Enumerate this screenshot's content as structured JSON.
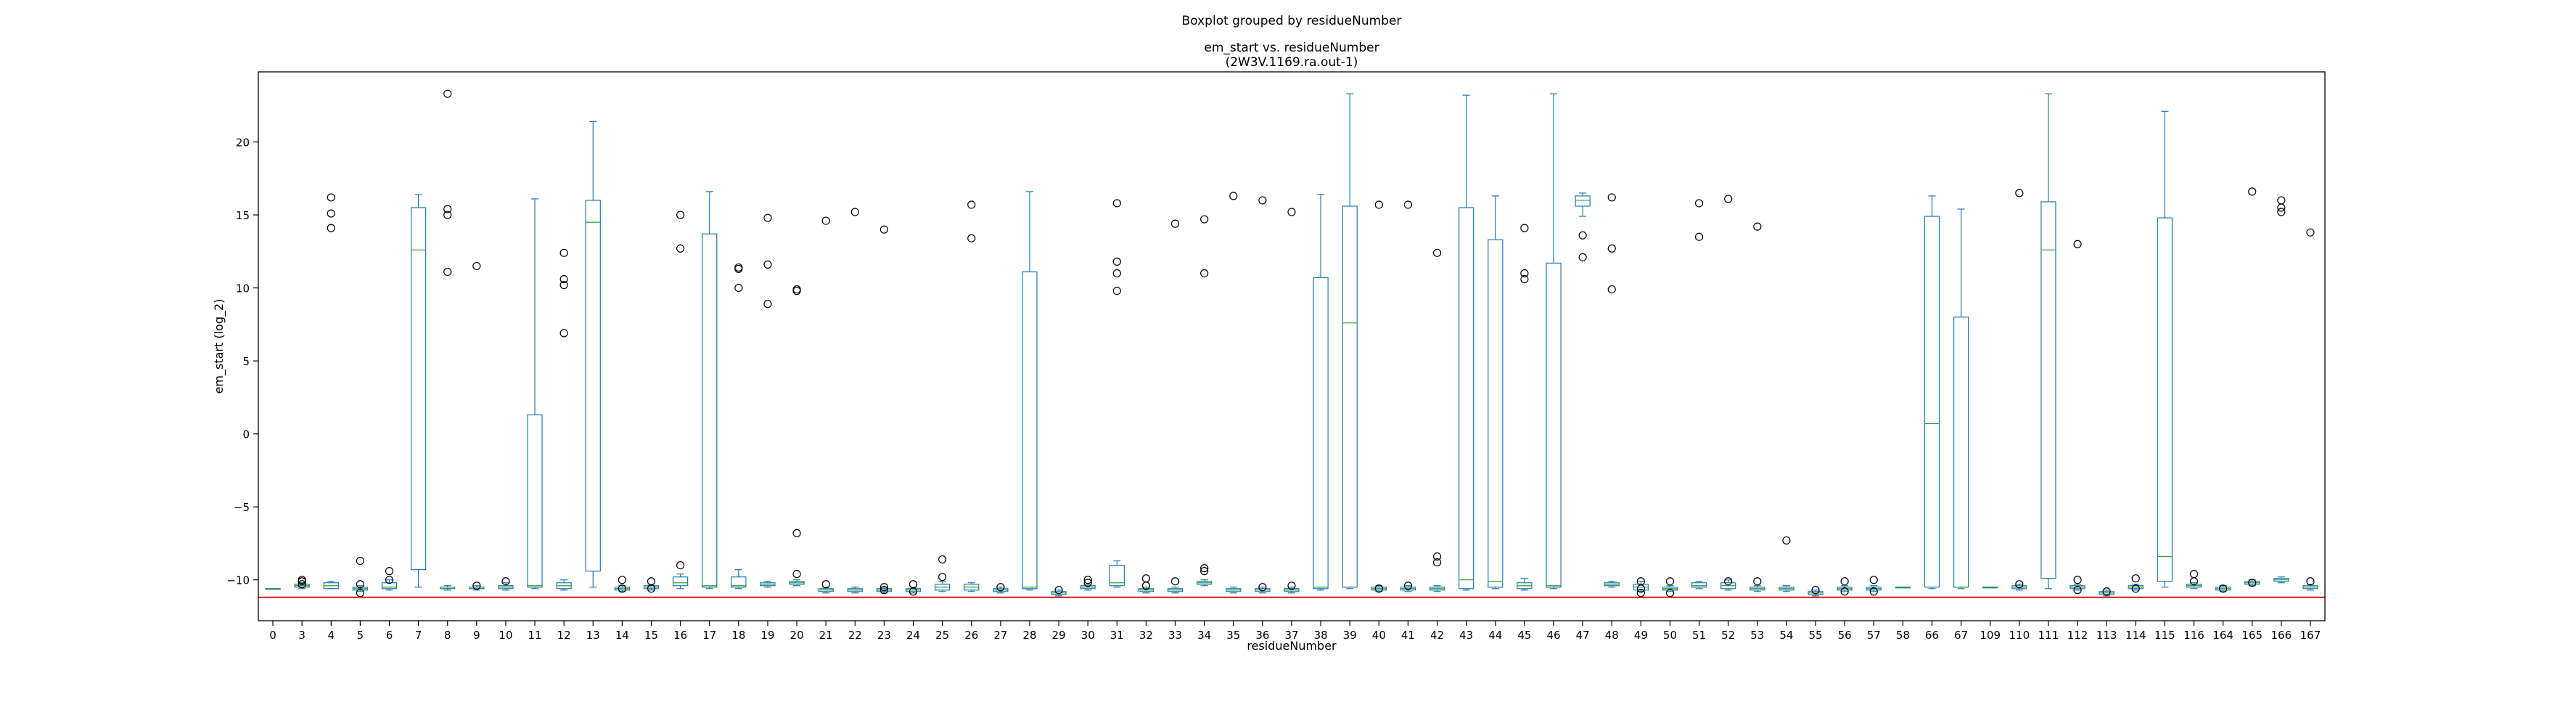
{
  "chart_data": {
    "type": "boxplot",
    "suptitle": "Boxplot grouped by residueNumber",
    "title_line1": "em_start vs. residueNumber",
    "title_line2": "(2W3V.1169.ra.out-1)",
    "xlabel": "residueNumber",
    "ylabel": "em_start (log_2)",
    "ylim": [
      -12.8,
      24.8
    ],
    "yticks": [
      -10,
      -5,
      0,
      5,
      10,
      15,
      20
    ],
    "grid": false,
    "reference_line": -11.2,
    "colors": {
      "box": "#1f77b4",
      "median": "#2ca02c",
      "reference": "#d62728",
      "outlier": "#000000"
    },
    "categories": [
      "0",
      "3",
      "4",
      "5",
      "6",
      "7",
      "8",
      "9",
      "10",
      "11",
      "12",
      "13",
      "14",
      "15",
      "16",
      "17",
      "18",
      "19",
      "20",
      "21",
      "22",
      "23",
      "24",
      "25",
      "26",
      "27",
      "28",
      "29",
      "30",
      "31",
      "32",
      "33",
      "34",
      "35",
      "36",
      "37",
      "38",
      "39",
      "40",
      "41",
      "42",
      "43",
      "44",
      "45",
      "46",
      "47",
      "48",
      "49",
      "50",
      "51",
      "52",
      "53",
      "54",
      "55",
      "56",
      "57",
      "58",
      "66",
      "67",
      "109",
      "110",
      "111",
      "112",
      "113",
      "114",
      "115",
      "116",
      "164",
      "165",
      "166",
      "167"
    ],
    "boxes": [
      {
        "q1": -10.6,
        "med": -10.6,
        "q3": -10.6,
        "lo": -10.6,
        "hi": -10.6,
        "out": []
      },
      {
        "q1": -10.5,
        "med": -10.4,
        "q3": -10.3,
        "lo": -10.6,
        "hi": -10.2,
        "out": [
          -10.1,
          -10.0,
          -10.3
        ]
      },
      {
        "q1": -10.6,
        "med": -10.4,
        "q3": -10.2,
        "lo": -10.6,
        "hi": -10.1,
        "out": [
          16.2,
          15.1,
          14.1
        ]
      },
      {
        "q1": -10.7,
        "med": -10.6,
        "q3": -10.5,
        "lo": -10.8,
        "hi": -10.4,
        "out": [
          -8.7,
          -10.3,
          -10.9
        ]
      },
      {
        "q1": -10.6,
        "med": -10.5,
        "q3": -10.2,
        "lo": -10.7,
        "hi": -10.0,
        "out": [
          -9.4,
          -10.0
        ]
      },
      {
        "q1": -9.3,
        "med": 12.6,
        "q3": 15.5,
        "lo": -10.5,
        "hi": 16.4,
        "out": []
      },
      {
        "q1": -10.6,
        "med": -10.6,
        "q3": -10.5,
        "lo": -10.7,
        "hi": -10.4,
        "out": [
          23.3,
          15.4,
          15.0,
          11.1
        ]
      },
      {
        "q1": -10.6,
        "med": -10.6,
        "q3": -10.5,
        "lo": -10.7,
        "hi": -10.4,
        "out": [
          11.5,
          -10.4
        ]
      },
      {
        "q1": -10.6,
        "med": -10.5,
        "q3": -10.4,
        "lo": -10.7,
        "hi": -10.2,
        "out": [
          -10.1
        ]
      },
      {
        "q1": -10.5,
        "med": -10.4,
        "q3": 1.3,
        "lo": -10.6,
        "hi": 16.1,
        "out": []
      },
      {
        "q1": -10.6,
        "med": -10.4,
        "q3": -10.2,
        "lo": -10.7,
        "hi": -10.0,
        "out": [
          12.4,
          10.6,
          10.2,
          6.9
        ]
      },
      {
        "q1": -9.4,
        "med": 14.5,
        "q3": 16.0,
        "lo": -10.5,
        "hi": 21.4,
        "out": []
      },
      {
        "q1": -10.7,
        "med": -10.6,
        "q3": -10.5,
        "lo": -10.8,
        "hi": -10.4,
        "out": [
          -10.0,
          -10.6
        ]
      },
      {
        "q1": -10.6,
        "med": -10.5,
        "q3": -10.4,
        "lo": -10.7,
        "hi": -10.3,
        "out": [
          -10.1,
          -10.6
        ]
      },
      {
        "q1": -10.4,
        "med": -10.2,
        "q3": -9.8,
        "lo": -10.6,
        "hi": -9.6,
        "out": [
          15.0,
          12.7,
          -9.0
        ]
      },
      {
        "q1": -10.5,
        "med": -10.4,
        "q3": 13.7,
        "lo": -10.6,
        "hi": 16.6,
        "out": []
      },
      {
        "q1": -10.5,
        "med": -10.4,
        "q3": -9.8,
        "lo": -10.6,
        "hi": -9.3,
        "out": [
          11.4,
          11.3,
          10.0
        ]
      },
      {
        "q1": -10.4,
        "med": -10.3,
        "q3": -10.2,
        "lo": -10.5,
        "hi": -10.1,
        "out": [
          14.8,
          11.6,
          8.9
        ]
      },
      {
        "q1": -10.3,
        "med": -10.2,
        "q3": -10.1,
        "lo": -10.4,
        "hi": -10.0,
        "out": [
          9.9,
          9.8,
          -6.8,
          -9.6
        ]
      },
      {
        "q1": -10.8,
        "med": -10.7,
        "q3": -10.6,
        "lo": -10.9,
        "hi": -10.5,
        "out": [
          14.6,
          -10.3
        ]
      },
      {
        "q1": -10.8,
        "med": -10.7,
        "q3": -10.6,
        "lo": -10.9,
        "hi": -10.5,
        "out": [
          15.2
        ]
      },
      {
        "q1": -10.8,
        "med": -10.7,
        "q3": -10.6,
        "lo": -10.9,
        "hi": -10.5,
        "out": [
          14.0,
          -10.5,
          -10.7
        ]
      },
      {
        "q1": -10.8,
        "med": -10.7,
        "q3": -10.6,
        "lo": -10.9,
        "hi": -10.5,
        "out": [
          -10.3,
          -10.8
        ]
      },
      {
        "q1": -10.7,
        "med": -10.5,
        "q3": -10.3,
        "lo": -10.8,
        "hi": -10.1,
        "out": [
          -8.6,
          -9.8
        ]
      },
      {
        "q1": -10.7,
        "med": -10.5,
        "q3": -10.3,
        "lo": -10.8,
        "hi": -10.2,
        "out": [
          15.7,
          13.4
        ]
      },
      {
        "q1": -10.8,
        "med": -10.7,
        "q3": -10.6,
        "lo": -10.9,
        "hi": -10.5,
        "out": [
          -10.5
        ]
      },
      {
        "q1": -10.6,
        "med": -10.5,
        "q3": 11.1,
        "lo": -10.7,
        "hi": 16.6,
        "out": []
      },
      {
        "q1": -11.0,
        "med": -10.9,
        "q3": -10.8,
        "lo": -11.1,
        "hi": -10.7,
        "out": [
          -10.7
        ]
      },
      {
        "q1": -10.6,
        "med": -10.5,
        "q3": -10.4,
        "lo": -10.7,
        "hi": -10.3,
        "out": [
          -10.0,
          -10.2
        ]
      },
      {
        "q1": -10.4,
        "med": -10.2,
        "q3": -9.0,
        "lo": -10.5,
        "hi": -8.7,
        "out": [
          15.8,
          11.8,
          11.0,
          9.8
        ]
      },
      {
        "q1": -10.8,
        "med": -10.7,
        "q3": -10.6,
        "lo": -10.9,
        "hi": -10.5,
        "out": [
          -9.9,
          -10.4
        ]
      },
      {
        "q1": -10.8,
        "med": -10.7,
        "q3": -10.6,
        "lo": -10.9,
        "hi": -10.5,
        "out": [
          14.4,
          -10.1
        ]
      },
      {
        "q1": -10.3,
        "med": -10.2,
        "q3": -10.1,
        "lo": -10.4,
        "hi": -10.0,
        "out": [
          14.7,
          11.0,
          -9.4,
          -9.2
        ]
      },
      {
        "q1": -10.8,
        "med": -10.7,
        "q3": -10.6,
        "lo": -10.9,
        "hi": -10.5,
        "out": [
          16.3
        ]
      },
      {
        "q1": -10.8,
        "med": -10.7,
        "q3": -10.6,
        "lo": -10.9,
        "hi": -10.5,
        "out": [
          16.0,
          -10.5
        ]
      },
      {
        "q1": -10.8,
        "med": -10.7,
        "q3": -10.6,
        "lo": -10.9,
        "hi": -10.5,
        "out": [
          15.2,
          -10.4
        ]
      },
      {
        "q1": -10.6,
        "med": -10.5,
        "q3": 10.7,
        "lo": -10.7,
        "hi": 16.4,
        "out": []
      },
      {
        "q1": -10.5,
        "med": 7.6,
        "q3": 15.6,
        "lo": -10.6,
        "hi": 23.3,
        "out": []
      },
      {
        "q1": -10.7,
        "med": -10.6,
        "q3": -10.5,
        "lo": -10.8,
        "hi": -10.4,
        "out": [
          15.7,
          -10.6
        ]
      },
      {
        "q1": -10.7,
        "med": -10.6,
        "q3": -10.5,
        "lo": -10.8,
        "hi": -10.4,
        "out": [
          15.7,
          -10.4
        ]
      },
      {
        "q1": -10.7,
        "med": -10.6,
        "q3": -10.5,
        "lo": -10.8,
        "hi": -10.4,
        "out": [
          12.4,
          -8.4,
          -8.8
        ]
      },
      {
        "q1": -10.6,
        "med": -10.0,
        "q3": 15.5,
        "lo": -10.7,
        "hi": 23.2,
        "out": []
      },
      {
        "q1": -10.5,
        "med": -10.1,
        "q3": 13.3,
        "lo": -10.6,
        "hi": 16.3,
        "out": []
      },
      {
        "q1": -10.6,
        "med": -10.4,
        "q3": -10.2,
        "lo": -10.7,
        "hi": -9.9,
        "out": [
          14.1,
          11.0,
          10.6
        ]
      },
      {
        "q1": -10.5,
        "med": -10.4,
        "q3": 11.7,
        "lo": -10.6,
        "hi": 23.3,
        "out": []
      },
      {
        "q1": 15.6,
        "med": 16.0,
        "q3": 16.3,
        "lo": 14.9,
        "hi": 16.5,
        "out": [
          13.6,
          12.1
        ]
      },
      {
        "q1": -10.4,
        "med": -10.3,
        "q3": -10.2,
        "lo": -10.5,
        "hi": -10.1,
        "out": [
          16.2,
          12.7,
          9.9
        ]
      },
      {
        "q1": -10.7,
        "med": -10.5,
        "q3": -10.3,
        "lo": -10.8,
        "hi": -10.1,
        "out": [
          -10.1,
          -10.6,
          -10.9
        ]
      },
      {
        "q1": -10.7,
        "med": -10.6,
        "q3": -10.5,
        "lo": -10.8,
        "hi": -10.4,
        "out": [
          -10.1,
          -10.9
        ]
      },
      {
        "q1": -10.5,
        "med": -10.4,
        "q3": -10.2,
        "lo": -10.6,
        "hi": -10.1,
        "out": [
          15.8,
          13.5
        ]
      },
      {
        "q1": -10.6,
        "med": -10.4,
        "q3": -10.2,
        "lo": -10.7,
        "hi": -10.0,
        "out": [
          16.1,
          -10.1
        ]
      },
      {
        "q1": -10.7,
        "med": -10.6,
        "q3": -10.5,
        "lo": -10.8,
        "hi": -10.4,
        "out": [
          14.2,
          -10.1
        ]
      },
      {
        "q1": -10.7,
        "med": -10.6,
        "q3": -10.5,
        "lo": -10.8,
        "hi": -10.4,
        "out": [
          -7.3
        ]
      },
      {
        "q1": -11.0,
        "med": -10.9,
        "q3": -10.8,
        "lo": -11.1,
        "hi": -10.7,
        "out": [
          -10.7
        ]
      },
      {
        "q1": -10.7,
        "med": -10.6,
        "q3": -10.5,
        "lo": -10.8,
        "hi": -10.4,
        "out": [
          -10.1,
          -10.8
        ]
      },
      {
        "q1": -10.7,
        "med": -10.6,
        "q3": -10.5,
        "lo": -10.8,
        "hi": -10.4,
        "out": [
          -10.0,
          -10.8
        ]
      },
      {
        "q1": -10.5,
        "med": -10.5,
        "q3": -10.5,
        "lo": -10.5,
        "hi": -10.5,
        "out": []
      },
      {
        "q1": -10.5,
        "med": 0.7,
        "q3": 14.9,
        "lo": -10.6,
        "hi": 16.3,
        "out": []
      },
      {
        "q1": -10.5,
        "med": -10.5,
        "q3": 8.0,
        "lo": -10.6,
        "hi": 15.4,
        "out": []
      },
      {
        "q1": -10.5,
        "med": -10.5,
        "q3": -10.5,
        "lo": -10.5,
        "hi": -10.5,
        "out": []
      },
      {
        "q1": -10.6,
        "med": -10.5,
        "q3": -10.4,
        "lo": -10.7,
        "hi": -10.3,
        "out": [
          16.5,
          -10.3
        ]
      },
      {
        "q1": -9.9,
        "med": 12.6,
        "q3": 15.9,
        "lo": -10.6,
        "hi": 23.3,
        "out": []
      },
      {
        "q1": -10.6,
        "med": -10.5,
        "q3": -10.4,
        "lo": -10.7,
        "hi": -10.3,
        "out": [
          13.0,
          -10.0,
          -10.7
        ]
      },
      {
        "q1": -11.0,
        "med": -10.9,
        "q3": -10.8,
        "lo": -11.1,
        "hi": -10.7,
        "out": [
          -10.8
        ]
      },
      {
        "q1": -10.6,
        "med": -10.5,
        "q3": -10.4,
        "lo": -10.7,
        "hi": -10.3,
        "out": [
          -9.9,
          -10.6
        ]
      },
      {
        "q1": -10.1,
        "med": -8.4,
        "q3": 14.8,
        "lo": -10.5,
        "hi": 22.1,
        "out": []
      },
      {
        "q1": -10.5,
        "med": -10.4,
        "q3": -10.3,
        "lo": -10.6,
        "hi": -10.2,
        "out": [
          -9.6,
          -10.1
        ]
      },
      {
        "q1": -10.7,
        "med": -10.6,
        "q3": -10.5,
        "lo": -10.8,
        "hi": -10.4,
        "out": [
          -10.6
        ]
      },
      {
        "q1": -10.3,
        "med": -10.2,
        "q3": -10.1,
        "lo": -10.4,
        "hi": -10.0,
        "out": [
          16.6,
          -10.2
        ]
      },
      {
        "q1": -10.1,
        "med": -10.0,
        "q3": -9.9,
        "lo": -10.2,
        "hi": -9.8,
        "out": [
          16.0,
          15.5,
          15.2
        ]
      },
      {
        "q1": -10.6,
        "med": -10.5,
        "q3": -10.4,
        "lo": -10.7,
        "hi": -10.3,
        "out": [
          13.8,
          -10.1
        ]
      }
    ]
  }
}
